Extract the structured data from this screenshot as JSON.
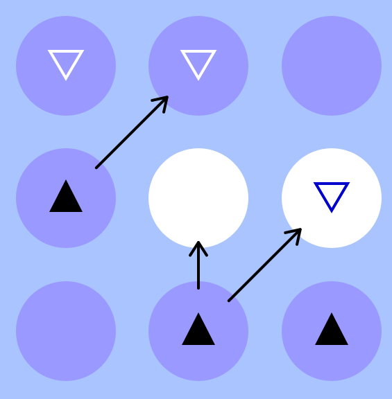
{
  "board": {
    "rows": 3,
    "cols": 3,
    "background": "#a9c4fe",
    "colors": {
      "cell_default": "#9999ff",
      "cell_highlight": "#ffffff",
      "piece_black": "#000000",
      "piece_white": "#ffffff",
      "piece_blue": "#0000cc",
      "arrow": "#000000"
    },
    "cells": [
      {
        "row": 0,
        "col": 0,
        "fill": "purple",
        "piece": {
          "shape": "triangle-down-outline",
          "color": "white"
        }
      },
      {
        "row": 0,
        "col": 1,
        "fill": "purple",
        "piece": {
          "shape": "triangle-down-outline",
          "color": "white"
        }
      },
      {
        "row": 0,
        "col": 2,
        "fill": "purple",
        "piece": null
      },
      {
        "row": 1,
        "col": 0,
        "fill": "purple",
        "piece": {
          "shape": "triangle-up-filled",
          "color": "black"
        }
      },
      {
        "row": 1,
        "col": 1,
        "fill": "white",
        "piece": null
      },
      {
        "row": 1,
        "col": 2,
        "fill": "white",
        "piece": {
          "shape": "triangle-down-outline",
          "color": "blue"
        }
      },
      {
        "row": 2,
        "col": 0,
        "fill": "purple",
        "piece": null
      },
      {
        "row": 2,
        "col": 1,
        "fill": "purple",
        "piece": {
          "shape": "triangle-up-filled",
          "color": "black"
        }
      },
      {
        "row": 2,
        "col": 2,
        "fill": "purple",
        "piece": {
          "shape": "triangle-up-filled",
          "color": "black"
        }
      }
    ],
    "moves": [
      {
        "from": [
          1,
          0
        ],
        "to": [
          0,
          1
        ]
      },
      {
        "from": [
          2,
          1
        ],
        "to": [
          1,
          1
        ]
      },
      {
        "from": [
          2,
          1
        ],
        "to": [
          1,
          2
        ]
      }
    ]
  }
}
